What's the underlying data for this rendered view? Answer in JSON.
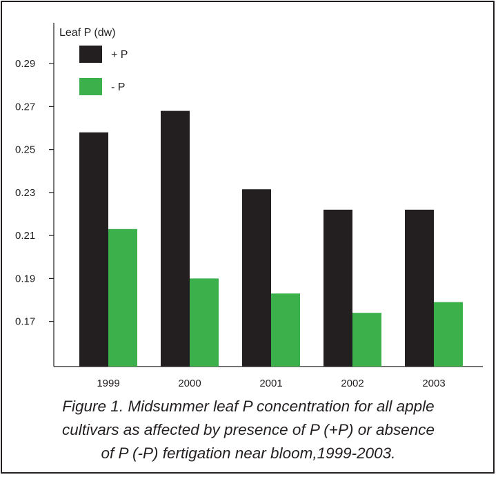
{
  "chart_data": {
    "type": "bar",
    "ylabel": "Leaf P (dw)",
    "categories": [
      "1999",
      "2000",
      "2001",
      "2002",
      "2003"
    ],
    "series": [
      {
        "name": "+ P",
        "color": "#231f20",
        "values": [
          0.258,
          0.268,
          0.2315,
          0.222,
          0.222
        ]
      },
      {
        "name": "- P",
        "color": "#3cb04a",
        "values": [
          0.213,
          0.19,
          0.183,
          0.174,
          0.179
        ]
      }
    ],
    "yticks": [
      "0.17",
      "0.19",
      "0.21",
      "0.23",
      "0.25",
      "0.27",
      "0.29"
    ],
    "ylim": [
      0.149,
      0.309
    ],
    "grid": false,
    "legend_position": "top-left"
  },
  "caption": {
    "line1": "Figure 1. Midsummer leaf P concentration for all apple",
    "line2": "cultivars as affected by presence of P (+P) or absence",
    "line3": "of P (-P) fertigation near bloom,1999-2003."
  }
}
